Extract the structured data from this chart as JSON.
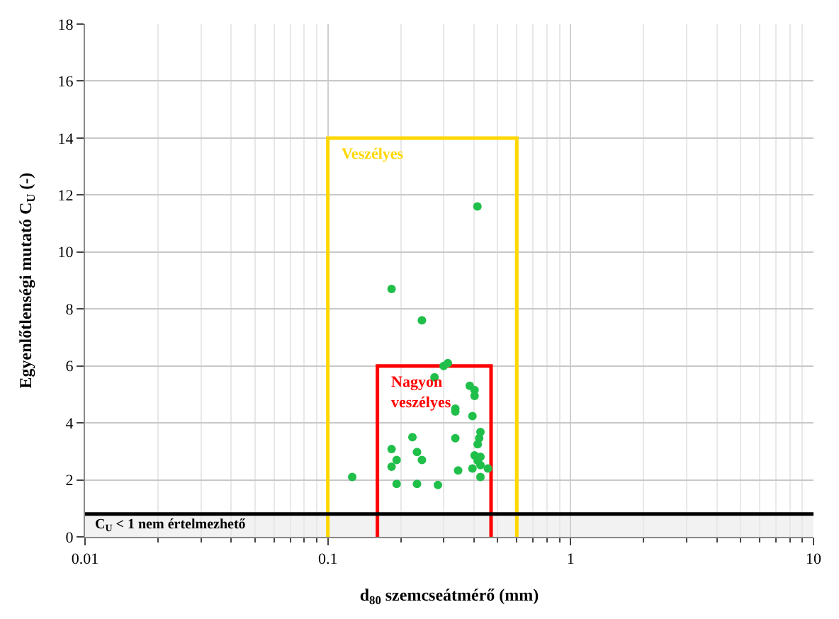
{
  "chart_data": {
    "type": "scatter",
    "xlabel": "d$_{80}$ szemcseátmérő (mm)",
    "ylabel": "Egyenlőtlenségi mutató C$_{U}$ (-)",
    "log": "x",
    "xlim": [
      0.01,
      10
    ],
    "xticks": [
      0.01,
      0.1,
      1,
      10
    ],
    "ylim": [
      0,
      18
    ],
    "yticks": [
      0,
      2,
      4,
      6,
      8,
      10,
      12,
      14,
      16,
      18
    ],
    "grid": true,
    "legend": false,
    "marker": "circle",
    "series": [
      {
        "type": "line",
        "name": "Veszélyes",
        "color": "#ffd700",
        "marker": "none",
        "x": [
          0.1,
          0.1,
          0.6,
          0.6
        ],
        "values": [
          0,
          14,
          14,
          0
        ]
      },
      {
        "type": "line",
        "name": "Nagyon veszélyes",
        "color": "#ff0000",
        "marker": "none",
        "x": [
          0.16,
          0.16,
          0.47,
          0.47
        ],
        "values": [
          0,
          6,
          6,
          0
        ]
      },
      {
        "color": "#1fbf4a",
        "x": [
          0.126,
          0.183,
          0.244,
          0.413,
          0.3,
          0.312,
          0.275,
          0.384,
          0.402,
          0.402,
          0.335,
          0.335,
          0.394,
          0.223,
          0.335,
          0.425,
          0.42,
          0.414,
          0.183,
          0.233,
          0.192,
          0.244,
          0.183,
          0.402,
          0.425,
          0.414,
          0.425,
          0.344,
          0.394,
          0.456,
          0.425,
          0.192,
          0.233,
          0.284
        ],
        "values": [
          2.1,
          8.7,
          7.6,
          11.6,
          6.0,
          6.1,
          5.6,
          5.3,
          5.15,
          4.95,
          4.5,
          4.4,
          4.24,
          3.5,
          3.46,
          3.68,
          3.46,
          3.25,
          3.08,
          2.98,
          2.7,
          2.7,
          2.46,
          2.86,
          2.81,
          2.68,
          2.52,
          2.33,
          2.4,
          2.4,
          2.1,
          1.86,
          1.86,
          1.82
        ]
      }
    ],
    "ref_lines": [
      {
        "axis": "y",
        "value": 0.8,
        "color": "#000000",
        "line_style": "solid"
      }
    ],
    "bands": [
      {
        "axis": "y",
        "from": 0,
        "to": 0.8,
        "color": "#f2f2f2",
        "label": "C$_{U}$ < 1 nem értelmezhető"
      }
    ]
  }
}
